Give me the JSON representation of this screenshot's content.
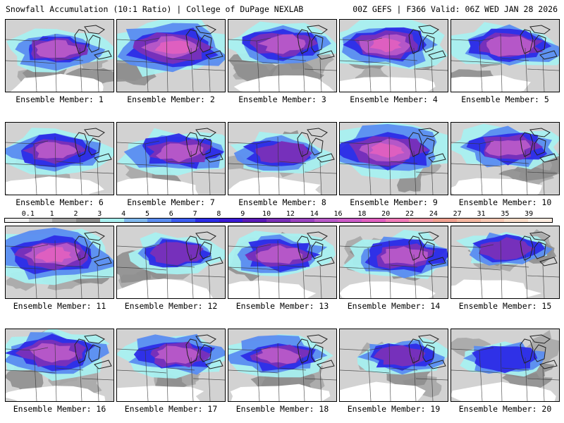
{
  "header": {
    "title": "Snowfall Accumulation (10:1 Ratio) | College of DuPage NEXLAB",
    "run_info": "00Z GEFS | F366 Valid: 06Z WED JAN 28 2026"
  },
  "colorbar": {
    "labels": [
      "0.1",
      "1",
      "2",
      "3",
      "4",
      "5",
      "6",
      "7",
      "8",
      "9",
      "10",
      "12",
      "14",
      "16",
      "18",
      "20",
      "22",
      "24",
      "27",
      "31",
      "35",
      "39"
    ],
    "colors": [
      "#efefef",
      "#c9c9c9",
      "#a4a4a4",
      "#8a8a8a",
      "#a8f0f0",
      "#7fb8ee",
      "#5a8cf0",
      "#3c5cf0",
      "#2c2ce6",
      "#3a1ad6",
      "#5a1ab8",
      "#7a30b8",
      "#9a44c0",
      "#b85ac8",
      "#cc5cc8",
      "#e060c0",
      "#f07ab8",
      "#f49aa8",
      "#f0a090",
      "#f4b6a0",
      "#f8c8b4",
      "#fadcc8",
      "#fdece0"
    ]
  },
  "panels": [
    {
      "label": "Ensemble Member: 1",
      "intensity": 0.5
    },
    {
      "label": "Ensemble Member: 2",
      "intensity": 0.85
    },
    {
      "label": "Ensemble Member: 3",
      "intensity": 0.55
    },
    {
      "label": "Ensemble Member: 4",
      "intensity": 0.7
    },
    {
      "label": "Ensemble Member: 5",
      "intensity": 0.65
    },
    {
      "label": "Ensemble Member: 6",
      "intensity": 0.55
    },
    {
      "label": "Ensemble Member: 7",
      "intensity": 0.6
    },
    {
      "label": "Ensemble Member: 8",
      "intensity": 0.45
    },
    {
      "label": "Ensemble Member: 9",
      "intensity": 0.85
    },
    {
      "label": "Ensemble Member: 10",
      "intensity": 0.55
    },
    {
      "label": "Ensemble Member: 11",
      "intensity": 0.9
    },
    {
      "label": "Ensemble Member: 12",
      "intensity": 0.4
    },
    {
      "label": "Ensemble Member: 13",
      "intensity": 0.55
    },
    {
      "label": "Ensemble Member: 14",
      "intensity": 0.6
    },
    {
      "label": "Ensemble Member: 15",
      "intensity": 0.35
    },
    {
      "label": "Ensemble Member: 16",
      "intensity": 0.65
    },
    {
      "label": "Ensemble Member: 17",
      "intensity": 0.55
    },
    {
      "label": "Ensemble Member: 18",
      "intensity": 0.5
    },
    {
      "label": "Ensemble Member: 19",
      "intensity": 0.35
    },
    {
      "label": "Ensemble Member: 20",
      "intensity": 0.3
    }
  ]
}
